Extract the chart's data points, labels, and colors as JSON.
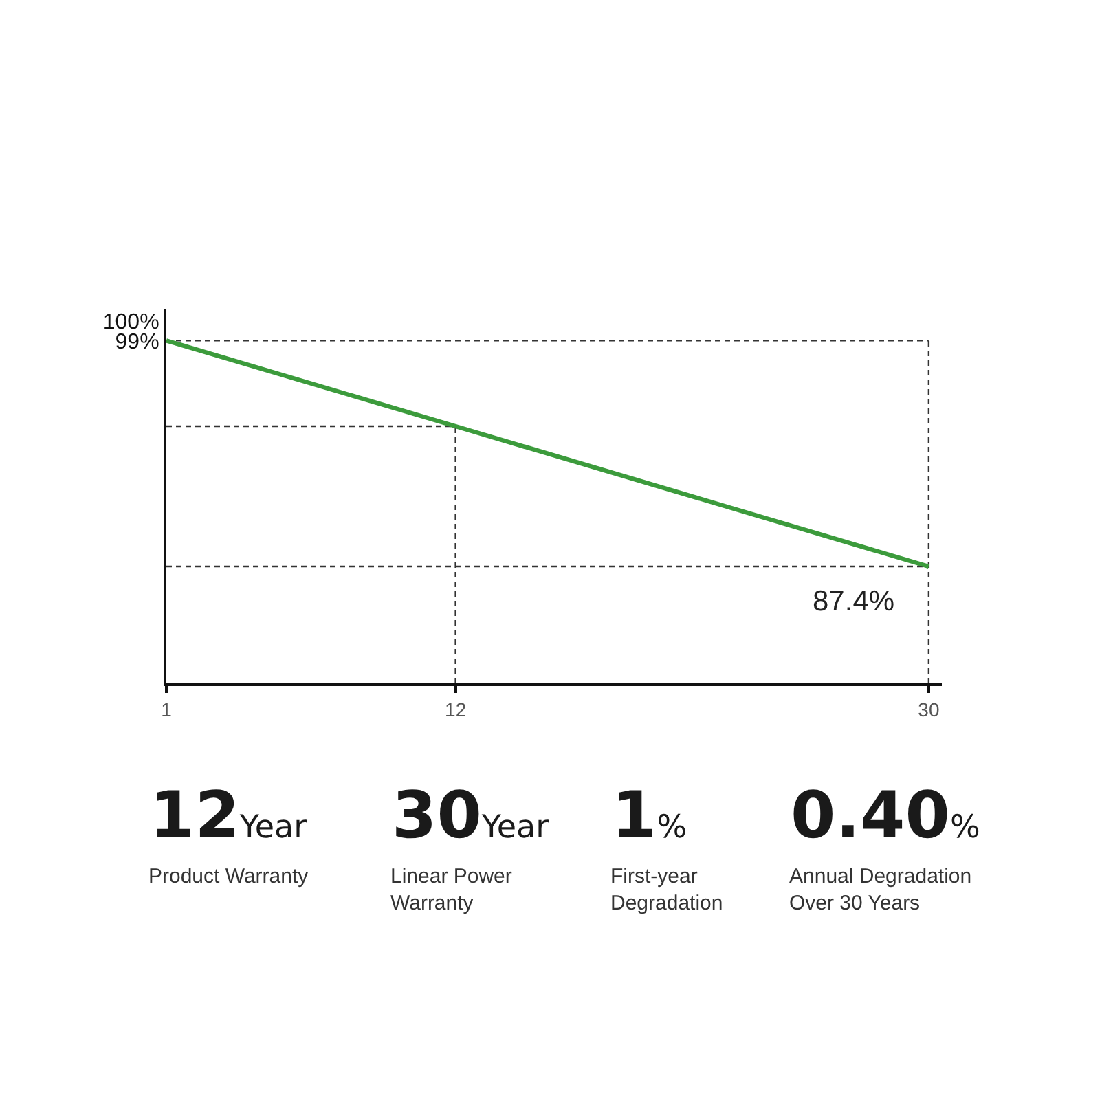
{
  "chart_data": [
    {
      "type": "line",
      "x": [
        1,
        12,
        30
      ],
      "values": [
        99,
        94.6,
        87.4
      ],
      "color": "#3c9b3c",
      "value_labels": [
        null,
        null,
        "87.4%"
      ],
      "xlim": [
        1,
        30.5
      ],
      "ylim": [
        81.4,
        100.6
      ],
      "xticks": [
        1,
        12,
        30
      ],
      "yticks": [
        {
          "value": 100,
          "label": "100%"
        },
        {
          "value": 99,
          "label": "99%"
        }
      ],
      "ref_lines": [
        {
          "axis": "y",
          "value": 99,
          "color": "#333333",
          "line_style": "dashed"
        },
        {
          "axis": "x",
          "value": 30,
          "color": "#333333",
          "line_style": "dashed"
        },
        {
          "axis": "y",
          "value": 94.6,
          "color": "#333333",
          "line_style": "dashed"
        },
        {
          "axis": "x",
          "value": 12,
          "color": "#333333",
          "line_style": "dashed"
        },
        {
          "axis": "y",
          "value": 87.4,
          "color": "#333333",
          "line_style": "dashed"
        }
      ]
    },
    {
      "type": "other",
      "annotations": [
        "12",
        "Year",
        "Product Warranty",
        "30",
        "Year",
        "Linear Power Warranty",
        "1",
        "%",
        "First-year Degradation",
        "0.40",
        "%",
        "Annual Degradation Over 30 Years"
      ]
    }
  ]
}
